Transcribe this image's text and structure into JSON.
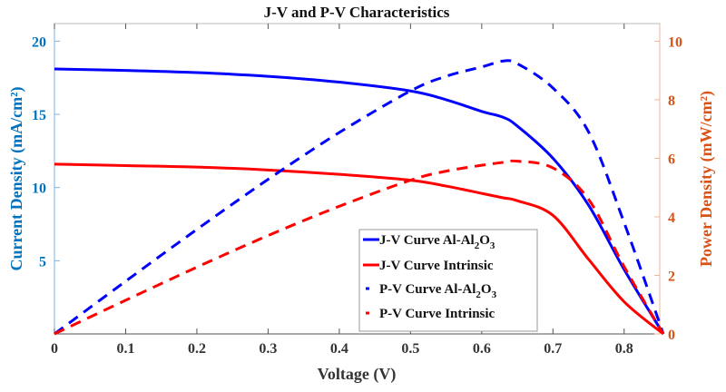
{
  "chart_data": {
    "type": "line",
    "title": "J-V and P-V Characteristics",
    "xlabel": "Voltage (V)",
    "ylabel_left": "Current Density (mA/cm²)",
    "ylabel_right": "Power Density (mW/cm²)",
    "xlim": [
      0,
      0.85
    ],
    "ylim_left": [
      0,
      21.2
    ],
    "ylim_right": [
      0,
      10.6
    ],
    "x_ticks": [
      "0",
      "0.1",
      "0.2",
      "0.3",
      "0.4",
      "0.5",
      "0.6",
      "0.7",
      "0.8"
    ],
    "y_left_ticks": [
      "5",
      "10",
      "15",
      "20"
    ],
    "y_right_ticks": [
      "0",
      "2",
      "4",
      "6",
      "8",
      "10"
    ],
    "grid": false,
    "legend_position": "lower-center",
    "colors": {
      "left_axis": "#0072BD",
      "right_axis": "#D95319",
      "al": "#0000FF",
      "intrinsic": "#FF0000"
    },
    "x": [
      0,
      0.1,
      0.2,
      0.3,
      0.4,
      0.5,
      0.55,
      0.6,
      0.63,
      0.65,
      0.7,
      0.75,
      0.8,
      0.855
    ],
    "series": [
      {
        "name": "J-V Curve Al-Al2O3",
        "label_main": "J-V Curve Al-Al",
        "label_sub": "2",
        "label_o": "O",
        "label_sub2": "3",
        "axis": "left",
        "style": "solid",
        "color": "#0000FF",
        "values": [
          18.1,
          18.0,
          17.85,
          17.6,
          17.2,
          16.6,
          16.0,
          15.2,
          14.8,
          14.2,
          12.0,
          8.8,
          4.4,
          0
        ]
      },
      {
        "name": "J-V Curve Intrinsic",
        "label_main": "J-V Curve Intrinsic",
        "axis": "left",
        "style": "solid",
        "color": "#FF0000",
        "values": [
          11.6,
          11.5,
          11.4,
          11.2,
          10.9,
          10.5,
          10.1,
          9.6,
          9.3,
          9.1,
          8.1,
          5.1,
          2.2,
          0
        ]
      },
      {
        "name": "P-V Curve Al-Al2O3",
        "label_main": "P-V Curve Al-Al",
        "label_sub": "2",
        "label_o": "O",
        "label_sub2": "3",
        "axis": "right",
        "style": "dashed",
        "color": "#0000FF",
        "values": [
          0,
          1.8,
          3.57,
          5.28,
          6.88,
          8.3,
          8.8,
          9.12,
          9.32,
          9.23,
          8.4,
          6.9,
          3.8,
          0
        ]
      },
      {
        "name": "P-V Curve Intrinsic",
        "label_main": "P-V Curve Intrinsic",
        "axis": "right",
        "style": "dashed",
        "color": "#FF0000",
        "values": [
          0,
          1.15,
          2.28,
          3.36,
          4.36,
          5.25,
          5.56,
          5.76,
          5.86,
          5.9,
          5.67,
          4.6,
          2.3,
          0
        ]
      }
    ]
  }
}
